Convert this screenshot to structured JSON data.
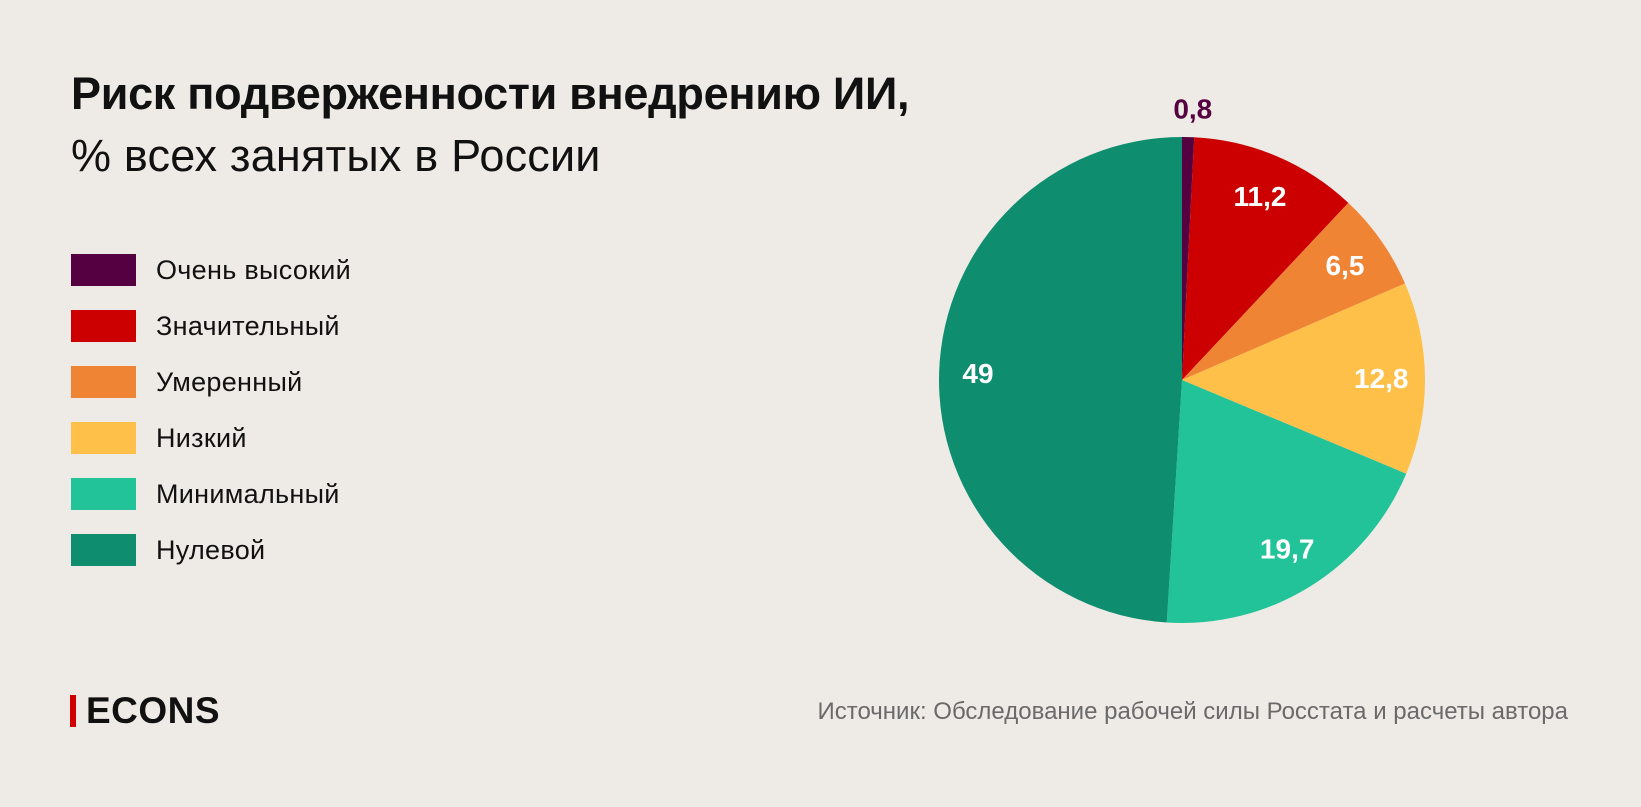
{
  "chart_data": {
    "type": "pie",
    "title": "Риск подверженности внедрению ИИ,",
    "subtitle": "% всех занятых в России",
    "slices": [
      {
        "name": "Очень высокий",
        "value": 0.8,
        "label": "0,8",
        "color": "#550040",
        "label_color": "#550040"
      },
      {
        "name": "Значительный",
        "value": 11.2,
        "label": "11,2",
        "color": "#cc0000",
        "label_color": "#ffffff"
      },
      {
        "name": "Умеренный",
        "value": 6.5,
        "label": "6,5",
        "color": "#f08435",
        "label_color": "#ffffff"
      },
      {
        "name": "Низкий",
        "value": 12.8,
        "label": "12,8",
        "color": "#ffc04a",
        "label_color": "#ffffff"
      },
      {
        "name": "Минимальный",
        "value": 19.7,
        "label": "19,7",
        "color": "#22c398",
        "label_color": "#ffffff"
      },
      {
        "name": "Нулевой",
        "value": 49,
        "label": "49",
        "color": "#0e8d6f",
        "label_color": "#ffffff"
      }
    ],
    "start": "12 o'clock",
    "direction": "clockwise",
    "legend_position": "left"
  },
  "brand": {
    "logo_text": "ECONS",
    "accent": "#d00000"
  },
  "source": "Источник: Обследование рабочей силы Росстата и расчеты автора"
}
